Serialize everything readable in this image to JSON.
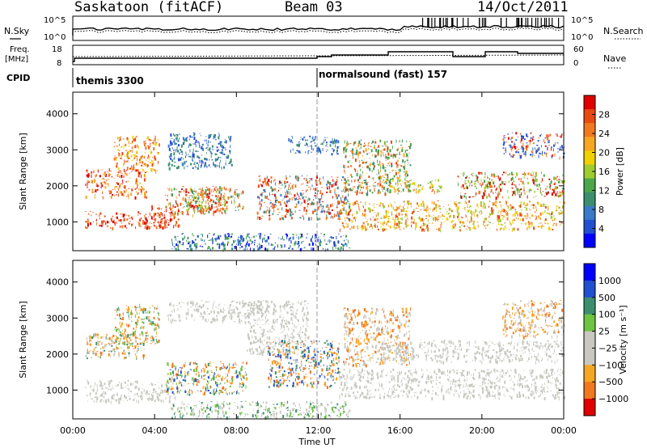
{
  "header": {
    "title": "Saskatoon (fitACF)",
    "beam": "Beam 03",
    "date": "14/Oct/2011"
  },
  "top_panels": {
    "nsky_label": "N.Sky",
    "nsky_ticks": [
      "10^5",
      "10^0"
    ],
    "nsearch_ticks": [
      "10^5",
      "10^0"
    ],
    "nsearch_label": "N.Search",
    "freq_label": "Freq.",
    "freq_unit": "[MHz]",
    "freq_ticks": [
      "18",
      "8"
    ],
    "nave_ticks": [
      "60",
      "0"
    ],
    "nave_label": "Nave",
    "cpid_label": "CPID",
    "cpid_modes": [
      {
        "name": "themis 3300",
        "start_hour": 0
      },
      {
        "name": "normalsound (fast) 157",
        "start_hour": 12
      }
    ]
  },
  "chart_data": [
    {
      "type": "heatmap",
      "name": "power-panel",
      "ylabel": "Slant Range [km]",
      "y_ticks": [
        1000,
        2000,
        3000,
        4000
      ],
      "ylim": [
        200,
        4600
      ],
      "xlim": [
        0,
        24
      ],
      "colorbar_label": "Power [dB]",
      "colorbar_ticks": [
        "28",
        "24",
        "20",
        "16",
        "12",
        "8",
        "4"
      ],
      "colors": [
        "#0000ff",
        "#2050d0",
        "#3a7bc8",
        "#3c8f6e",
        "#4aa84a",
        "#a0cc30",
        "#f0d000",
        "#f5a623",
        "#f07820",
        "#e84a10",
        "#e00000"
      ],
      "regions": [
        {
          "x0": 0.6,
          "x1": 4.8,
          "y0": 850,
          "y1": 1300,
          "c": [
            9,
            10,
            8
          ]
        },
        {
          "x0": 0.6,
          "x1": 3.6,
          "y0": 1700,
          "y1": 2500,
          "c": [
            9,
            10,
            7
          ]
        },
        {
          "x0": 2.0,
          "x1": 4.2,
          "y0": 2400,
          "y1": 3400,
          "c": [
            6,
            8,
            9
          ]
        },
        {
          "x0": 3.8,
          "x1": 5.2,
          "y0": 900,
          "y1": 1500,
          "c": [
            10,
            9,
            8
          ]
        },
        {
          "x0": 4.5,
          "x1": 7.5,
          "y0": 1200,
          "y1": 2000,
          "c": [
            4,
            7,
            9,
            10
          ]
        },
        {
          "x0": 5.5,
          "x1": 8.3,
          "y0": 1300,
          "y1": 1950,
          "c": [
            3,
            5,
            9,
            8
          ]
        },
        {
          "x0": 4.6,
          "x1": 7.8,
          "y0": 2500,
          "y1": 3500,
          "c": [
            1,
            2,
            3
          ]
        },
        {
          "x0": 9.0,
          "x1": 13.5,
          "y0": 1100,
          "y1": 2300,
          "c": [
            2,
            3,
            8,
            9,
            10
          ]
        },
        {
          "x0": 10.5,
          "x1": 13.0,
          "y0": 2900,
          "y1": 3400,
          "c": [
            1,
            2,
            3
          ]
        },
        {
          "x0": 13.2,
          "x1": 16.5,
          "y0": 1800,
          "y1": 3300,
          "c": [
            3,
            4,
            7,
            9
          ]
        },
        {
          "x0": 13.0,
          "x1": 24.0,
          "y0": 800,
          "y1": 1600,
          "c": [
            5,
            6,
            7,
            9,
            8
          ]
        },
        {
          "x0": 15.0,
          "x1": 18.0,
          "y0": 1850,
          "y1": 2200,
          "c": [
            4,
            5,
            6,
            8
          ]
        },
        {
          "x0": 18.8,
          "x1": 24.0,
          "y0": 1700,
          "y1": 2400,
          "c": [
            4,
            5,
            8,
            10
          ]
        },
        {
          "x0": 21.0,
          "x1": 24.0,
          "y0": 2800,
          "y1": 3500,
          "c": [
            1,
            2,
            8,
            10
          ]
        },
        {
          "x0": 4.8,
          "x1": 13.5,
          "y0": 250,
          "y1": 700,
          "c": [
            0,
            1,
            2,
            3,
            4
          ]
        }
      ]
    },
    {
      "type": "heatmap",
      "name": "velocity-panel",
      "ylabel": "Slant Range [km]",
      "y_ticks": [
        1000,
        2000,
        3000,
        4000
      ],
      "ylim": [
        200,
        4600
      ],
      "xlim": [
        0,
        24
      ],
      "colorbar_label": "Velocity [m s⁻¹]",
      "colorbar_ticks": [
        "1000",
        "500",
        "100",
        "25",
        "−25",
        "−100",
        "−500",
        "−1000"
      ],
      "colors": [
        "#e00000",
        "#f07820",
        "#f5a623",
        "#c8c8c0",
        "#c8c8c0",
        "#6cc440",
        "#3c8f6e",
        "#2050d0",
        "#0000ff"
      ],
      "regions": [
        {
          "x0": 0.6,
          "x1": 5.0,
          "y0": 700,
          "y1": 1300,
          "c": [
            3,
            4
          ]
        },
        {
          "x0": 0.6,
          "x1": 3.5,
          "y0": 1900,
          "y1": 2600,
          "c": [
            1,
            2,
            3,
            6
          ]
        },
        {
          "x0": 2.0,
          "x1": 4.2,
          "y0": 2300,
          "y1": 3400,
          "c": [
            1,
            2,
            5,
            6
          ]
        },
        {
          "x0": 4.5,
          "x1": 8.5,
          "y0": 900,
          "y1": 1800,
          "c": [
            1,
            2,
            5,
            6,
            7
          ]
        },
        {
          "x0": 4.6,
          "x1": 9.5,
          "y0": 2900,
          "y1": 3500,
          "c": [
            3,
            4
          ]
        },
        {
          "x0": 8.5,
          "x1": 11.5,
          "y0": 2000,
          "y1": 3500,
          "c": [
            3,
            4
          ]
        },
        {
          "x0": 9.5,
          "x1": 13.0,
          "y0": 1100,
          "y1": 2400,
          "c": [
            1,
            2,
            6,
            7
          ]
        },
        {
          "x0": 13.2,
          "x1": 16.5,
          "y0": 1700,
          "y1": 3300,
          "c": [
            3,
            4,
            1,
            2
          ]
        },
        {
          "x0": 13.0,
          "x1": 24.0,
          "y0": 800,
          "y1": 1600,
          "c": [
            3,
            4
          ]
        },
        {
          "x0": 15.0,
          "x1": 24.0,
          "y0": 1800,
          "y1": 2400,
          "c": [
            3,
            4
          ]
        },
        {
          "x0": 21.0,
          "x1": 24.0,
          "y0": 2500,
          "y1": 3500,
          "c": [
            1,
            2,
            3
          ]
        },
        {
          "x0": 4.8,
          "x1": 13.5,
          "y0": 250,
          "y1": 700,
          "c": [
            3,
            4,
            5,
            6
          ]
        }
      ]
    }
  ],
  "x_axis": {
    "label": "Time UT",
    "tick_labels": [
      "00:00",
      "04:00",
      "08:00",
      "12:00",
      "16:00",
      "20:00",
      "00:00"
    ],
    "tick_hours": [
      0,
      4,
      8,
      12,
      16,
      20,
      24
    ]
  }
}
